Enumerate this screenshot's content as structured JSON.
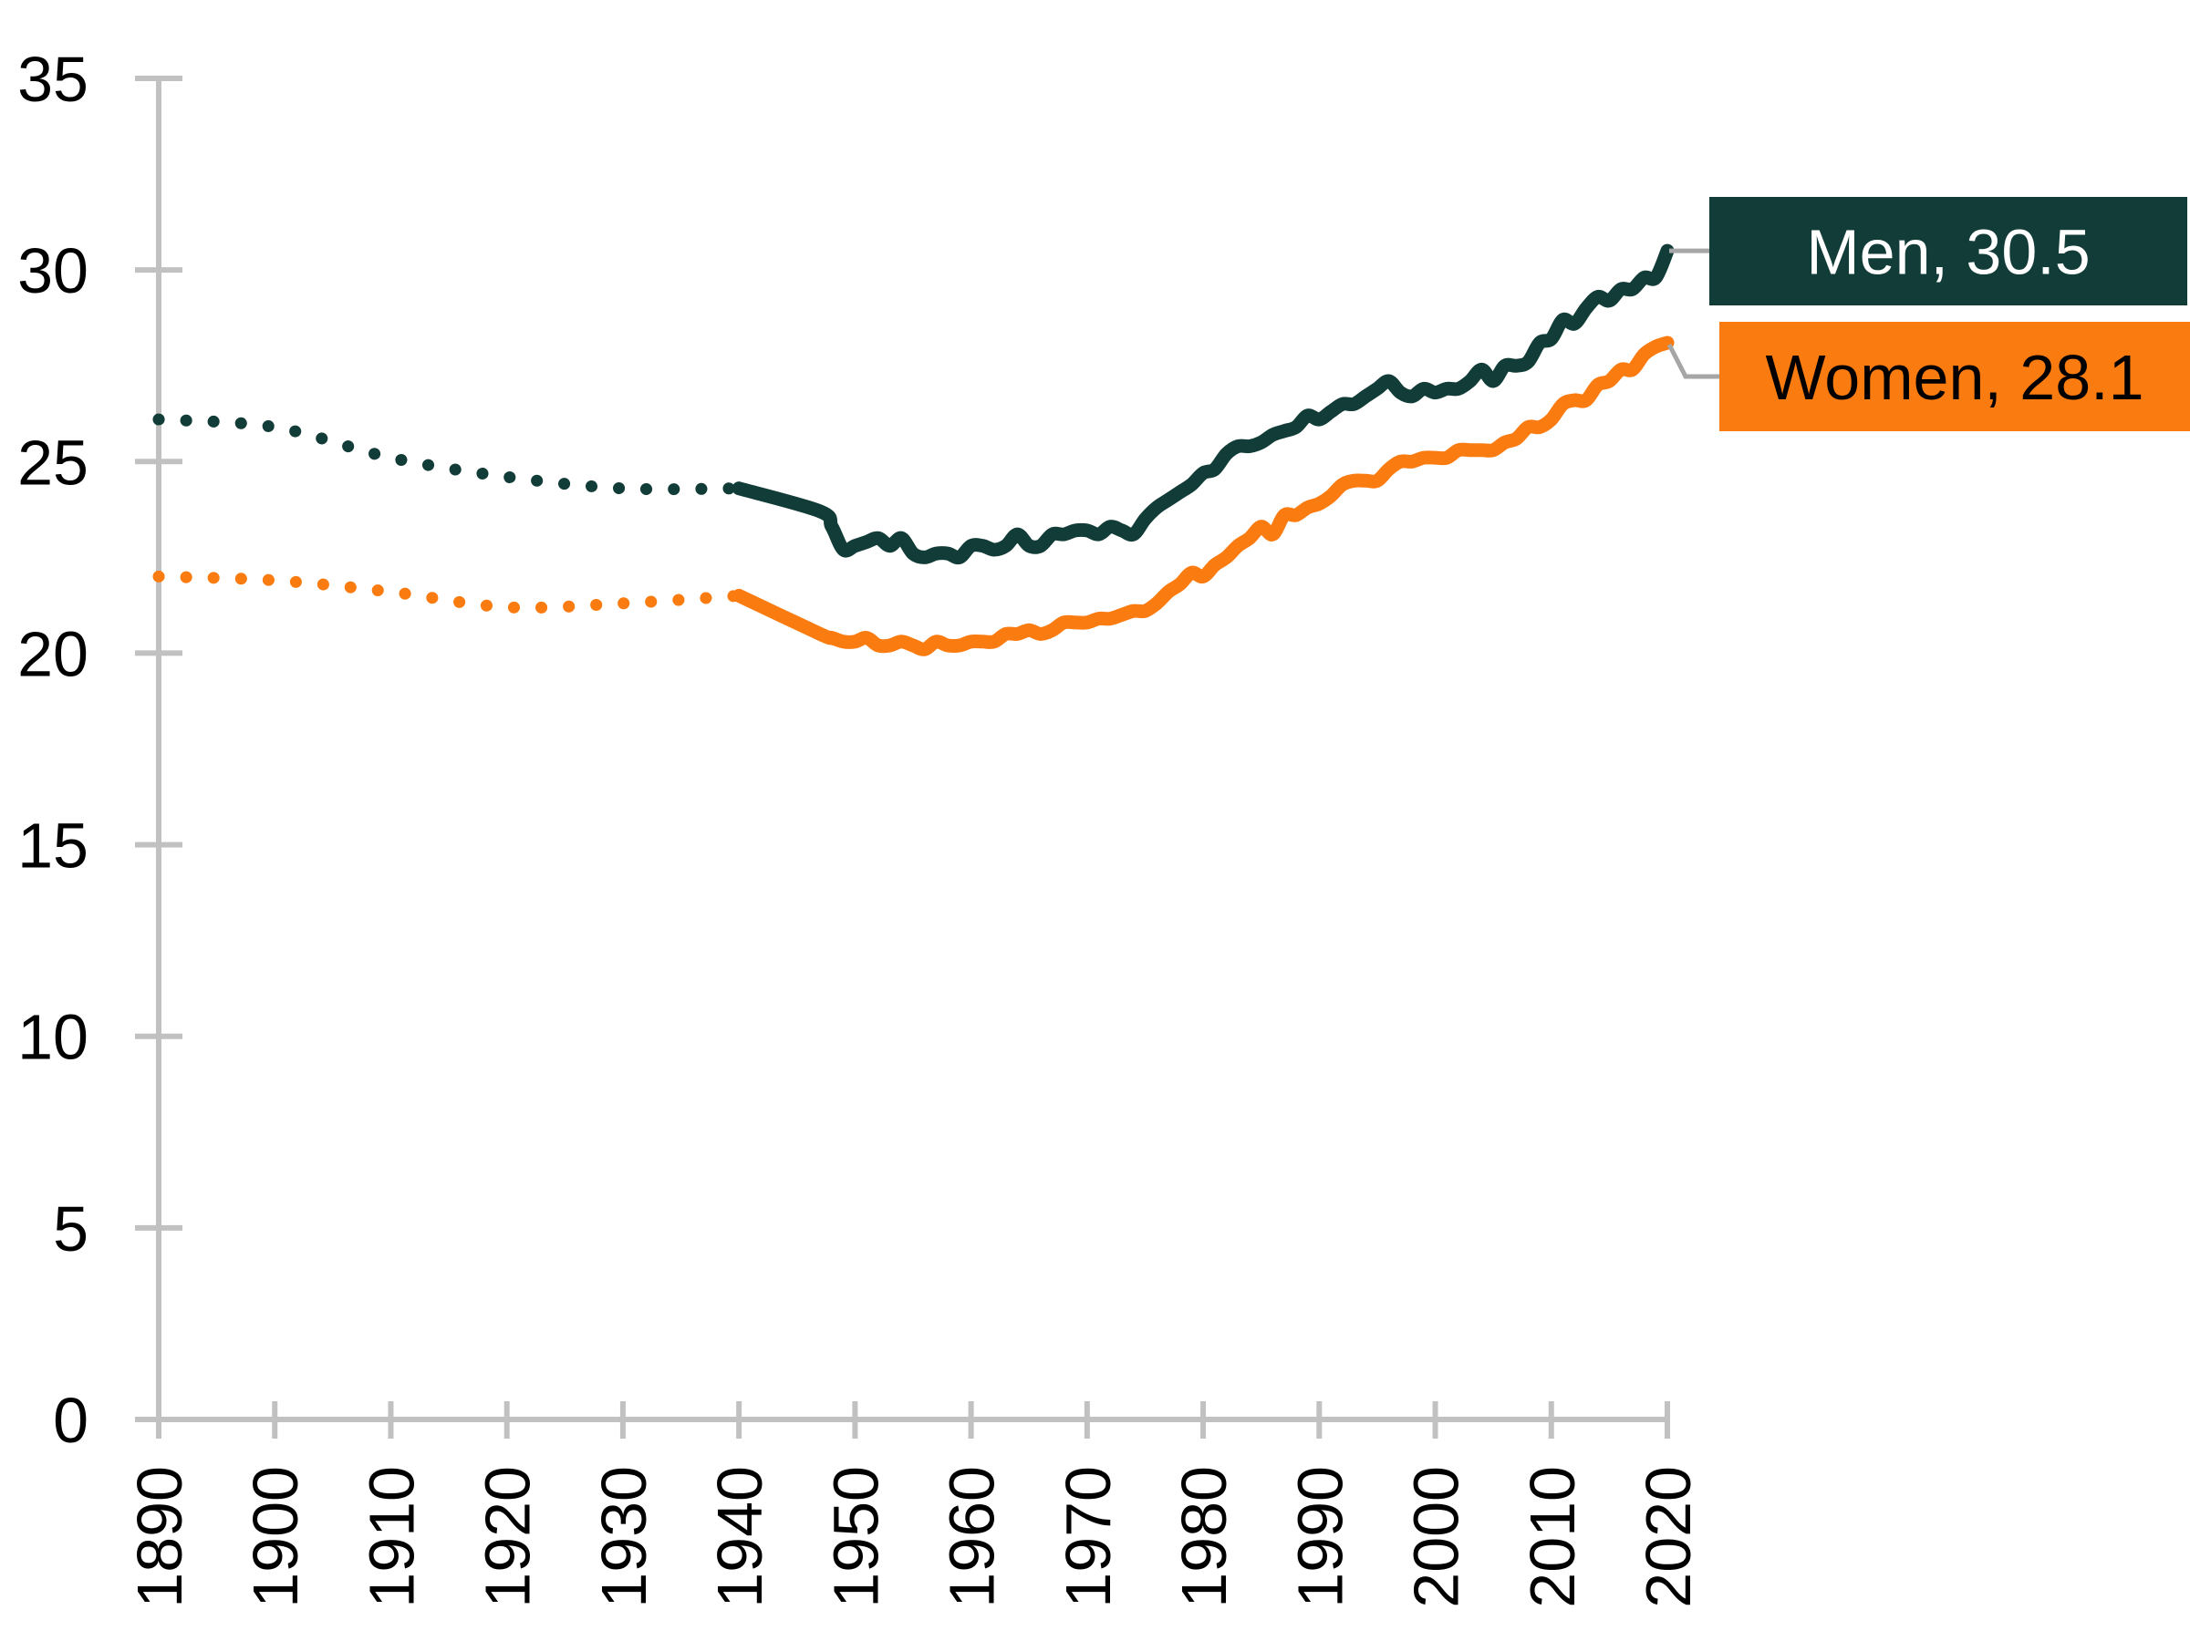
{
  "chart_data": {
    "type": "line",
    "title": "",
    "xlabel": "",
    "ylabel": "",
    "ylim": [
      0,
      35
    ],
    "y_ticks": [
      0,
      5,
      10,
      15,
      20,
      25,
      30,
      35
    ],
    "x_ticks": [
      1890,
      1900,
      1910,
      1920,
      1930,
      1940,
      1950,
      1960,
      1970,
      1980,
      1990,
      2000,
      2010,
      2020
    ],
    "grid": "off",
    "legend_position": "end-of-line callout boxes",
    "axis_color": "#C1C1C1",
    "leader_line_color": "#A6A6A6",
    "tick_label_color": "#000000",
    "series": [
      {
        "name": "Men",
        "callout_label": "Men, 30.5",
        "end_value": 30.5,
        "line_color": "#123C37",
        "callout_fill": "#123C37",
        "callout_text_color": "#FFFFFF",
        "dotted_segment": {
          "years": [
            1890,
            1900,
            1910,
            1920,
            1930,
            1940
          ],
          "values": [
            26.1,
            25.9,
            25.1,
            24.6,
            24.3,
            24.3
          ]
        },
        "solid_segment": {
          "years": [
            1940,
            1947,
            1948,
            1949,
            1950,
            1951,
            1952,
            1953,
            1954,
            1955,
            1956,
            1957,
            1958,
            1959,
            1960,
            1961,
            1962,
            1963,
            1964,
            1965,
            1966,
            1967,
            1968,
            1969,
            1970,
            1971,
            1972,
            1973,
            1974,
            1975,
            1976,
            1977,
            1978,
            1979,
            1980,
            1981,
            1982,
            1983,
            1984,
            1985,
            1986,
            1987,
            1988,
            1989,
            1990,
            1991,
            1992,
            1993,
            1994,
            1995,
            1996,
            1997,
            1998,
            1999,
            2000,
            2001,
            2002,
            2003,
            2004,
            2005,
            2006,
            2007,
            2008,
            2009,
            2010,
            2011,
            2012,
            2013,
            2014,
            2015,
            2016,
            2017,
            2018,
            2019,
            2020
          ],
          "values": [
            24.3,
            23.7,
            23.3,
            22.7,
            22.8,
            22.9,
            23.0,
            22.8,
            23.0,
            22.6,
            22.5,
            22.6,
            22.6,
            22.5,
            22.8,
            22.8,
            22.7,
            22.8,
            23.1,
            22.8,
            22.8,
            23.1,
            23.1,
            23.2,
            23.2,
            23.1,
            23.3,
            23.2,
            23.1,
            23.5,
            23.8,
            24.0,
            24.2,
            24.4,
            24.7,
            24.8,
            25.2,
            25.4,
            25.4,
            25.5,
            25.7,
            25.8,
            25.9,
            26.2,
            26.1,
            26.3,
            26.5,
            26.5,
            26.7,
            26.9,
            27.1,
            26.8,
            26.7,
            26.9,
            26.8,
            26.9,
            26.9,
            27.1,
            27.4,
            27.1,
            27.5,
            27.5,
            27.6,
            28.1,
            28.2,
            28.7,
            28.6,
            29.0,
            29.3,
            29.2,
            29.5,
            29.5,
            29.8,
            29.8,
            30.5
          ]
        }
      },
      {
        "name": "Women",
        "callout_label": "Women, 28.1",
        "end_value": 28.1,
        "line_color": "#FA7B10",
        "callout_fill": "#FA7B10",
        "callout_text_color": "#000000",
        "dotted_segment": {
          "years": [
            1890,
            1900,
            1910,
            1920,
            1930,
            1940
          ],
          "values": [
            22.0,
            21.9,
            21.6,
            21.2,
            21.3,
            21.5
          ]
        },
        "solid_segment": {
          "years": [
            1940,
            1947,
            1948,
            1949,
            1950,
            1951,
            1952,
            1953,
            1954,
            1955,
            1956,
            1957,
            1958,
            1959,
            1960,
            1961,
            1962,
            1963,
            1964,
            1965,
            1966,
            1967,
            1968,
            1969,
            1970,
            1971,
            1972,
            1973,
            1974,
            1975,
            1976,
            1977,
            1978,
            1979,
            1980,
            1981,
            1982,
            1983,
            1984,
            1985,
            1986,
            1987,
            1988,
            1989,
            1990,
            1991,
            1992,
            1993,
            1994,
            1995,
            1996,
            1997,
            1998,
            1999,
            2000,
            2001,
            2002,
            2003,
            2004,
            2005,
            2006,
            2007,
            2008,
            2009,
            2010,
            2011,
            2012,
            2013,
            2014,
            2015,
            2016,
            2017,
            2018,
            2019,
            2020
          ],
          "values": [
            21.5,
            20.5,
            20.4,
            20.3,
            20.3,
            20.4,
            20.2,
            20.2,
            20.3,
            20.2,
            20.1,
            20.3,
            20.2,
            20.2,
            20.3,
            20.3,
            20.3,
            20.5,
            20.5,
            20.6,
            20.5,
            20.6,
            20.8,
            20.8,
            20.8,
            20.9,
            20.9,
            21.0,
            21.1,
            21.1,
            21.3,
            21.6,
            21.8,
            22.1,
            22.0,
            22.3,
            22.5,
            22.8,
            23.0,
            23.3,
            23.1,
            23.6,
            23.6,
            23.8,
            23.9,
            24.1,
            24.4,
            24.5,
            24.5,
            24.5,
            24.8,
            25.0,
            25.0,
            25.1,
            25.1,
            25.1,
            25.3,
            25.3,
            25.3,
            25.3,
            25.5,
            25.6,
            25.9,
            25.9,
            26.1,
            26.5,
            26.6,
            26.6,
            27.0,
            27.1,
            27.4,
            27.4,
            27.8,
            28.0,
            28.1
          ]
        }
      }
    ]
  }
}
